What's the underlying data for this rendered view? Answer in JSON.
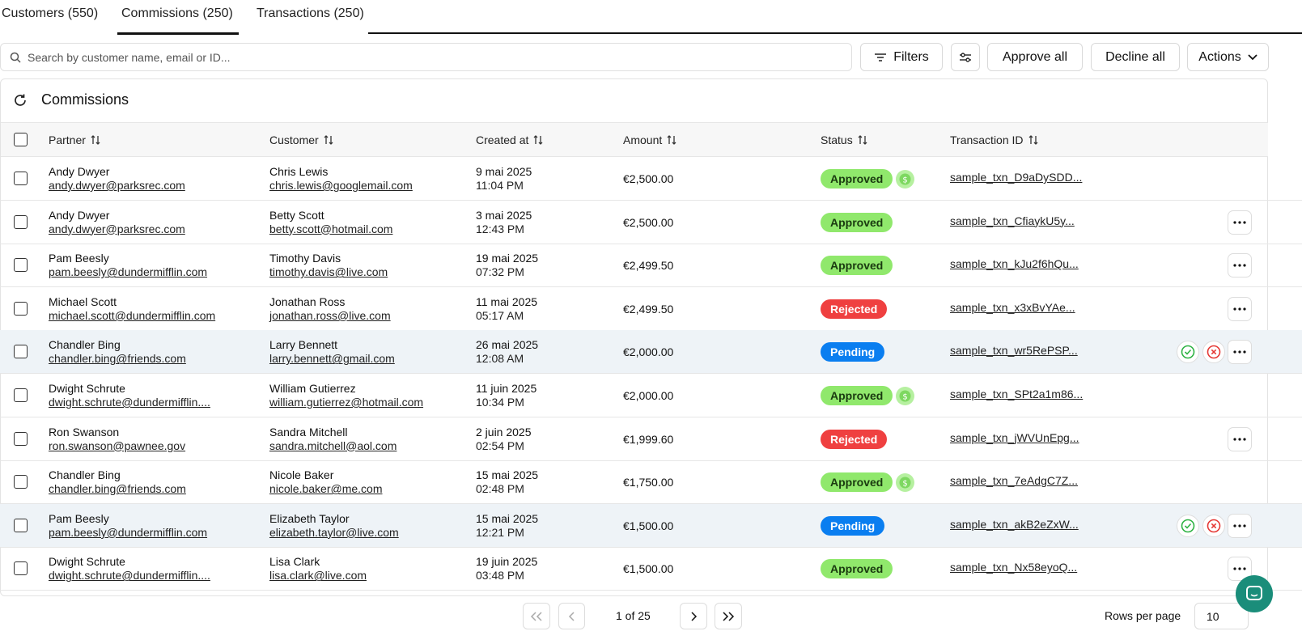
{
  "tabs": [
    "Customers (550)",
    "Commissions (250)",
    "Transactions (250)"
  ],
  "active_tab": 1,
  "search_placeholder": "Search by customer name, email or ID...",
  "toolbar": {
    "filters": "Filters",
    "approve_all": "Approve all",
    "decline_all": "Decline all",
    "actions": "Actions"
  },
  "panel_title": "Commissions",
  "table": {
    "columns": [
      "Partner",
      "Customer",
      "Created at",
      "Amount",
      "Status",
      "Transaction ID"
    ],
    "rows": [
      {
        "partner": "Andy Dwyer",
        "partner_email": "andy.dwyer@parksrec.com",
        "customer": "Chris Lewis",
        "customer_email": "chris.lewis@googlemail.com",
        "date": "9 mai 2025",
        "time": "11:04 PM",
        "amount": "€2,500.00",
        "status": "Approved",
        "paid": true,
        "transaction_id": "sample_txn_D9aDySDD..."
      },
      {
        "partner": "Andy Dwyer",
        "partner_email": "andy.dwyer@parksrec.com",
        "customer": "Betty Scott",
        "customer_email": "betty.scott@hotmail.com",
        "date": "3 mai 2025",
        "time": "12:43 PM",
        "amount": "€2,500.00",
        "status": "Approved",
        "paid": false,
        "transaction_id": "sample_txn_CfiaykU5y..."
      },
      {
        "partner": "Pam Beesly",
        "partner_email": "pam.beesly@dundermifflin.com",
        "customer": "Timothy Davis",
        "customer_email": "timothy.davis@live.com",
        "date": "19 mai 2025",
        "time": "07:32 PM",
        "amount": "€2,499.50",
        "status": "Approved",
        "paid": false,
        "transaction_id": "sample_txn_kJu2f6hQu..."
      },
      {
        "partner": "Michael Scott",
        "partner_email": "michael.scott@dundermifflin.com",
        "customer": "Jonathan Ross",
        "customer_email": "jonathan.ross@live.com",
        "date": "11 mai 2025",
        "time": "05:17 AM",
        "amount": "€2,499.50",
        "status": "Rejected",
        "paid": false,
        "transaction_id": "sample_txn_x3xBvYAe..."
      },
      {
        "partner": "Chandler Bing",
        "partner_email": "chandler.bing@friends.com",
        "customer": "Larry Bennett",
        "customer_email": "larry.bennett@gmail.com",
        "date": "26 mai 2025",
        "time": "12:08 AM",
        "amount": "€2,000.00",
        "status": "Pending",
        "paid": false,
        "transaction_id": "sample_txn_wr5RePSP..."
      },
      {
        "partner": "Dwight Schrute",
        "partner_email": "dwight.schrute@dundermifflin....",
        "customer": "William Gutierrez",
        "customer_email": "william.gutierrez@hotmail.com",
        "date": "11 juin 2025",
        "time": "10:34 PM",
        "amount": "€2,000.00",
        "status": "Approved",
        "paid": true,
        "transaction_id": "sample_txn_SPt2a1m86..."
      },
      {
        "partner": "Ron Swanson",
        "partner_email": "ron.swanson@pawnee.gov",
        "customer": "Sandra Mitchell",
        "customer_email": "sandra.mitchell@aol.com",
        "date": "2 juin 2025",
        "time": "02:54 PM",
        "amount": "€1,999.60",
        "status": "Rejected",
        "paid": false,
        "transaction_id": "sample_txn_jWVUnEpg..."
      },
      {
        "partner": "Chandler Bing",
        "partner_email": "chandler.bing@friends.com",
        "customer": "Nicole Baker",
        "customer_email": "nicole.baker@me.com",
        "date": "15 mai 2025",
        "time": "02:48 PM",
        "amount": "€1,750.00",
        "status": "Approved",
        "paid": true,
        "transaction_id": "sample_txn_7eAdgC7Z..."
      },
      {
        "partner": "Pam Beesly",
        "partner_email": "pam.beesly@dundermifflin.com",
        "customer": "Elizabeth Taylor",
        "customer_email": "elizabeth.taylor@live.com",
        "date": "15 mai 2025",
        "time": "12:21 PM",
        "amount": "€1,500.00",
        "status": "Pending",
        "paid": false,
        "transaction_id": "sample_txn_akB2eZxW..."
      },
      {
        "partner": "Dwight Schrute",
        "partner_email": "dwight.schrute@dundermifflin....",
        "customer": "Lisa Clark",
        "customer_email": "lisa.clark@live.com",
        "date": "19 juin 2025",
        "time": "03:48 PM",
        "amount": "€1,500.00",
        "status": "Approved",
        "paid": false,
        "transaction_id": "sample_txn_Nx58eyoQ..."
      }
    ]
  },
  "pagination": {
    "page": "1 of 25",
    "rows_per_page_label": "Rows per page",
    "rows_per_page": "10"
  }
}
